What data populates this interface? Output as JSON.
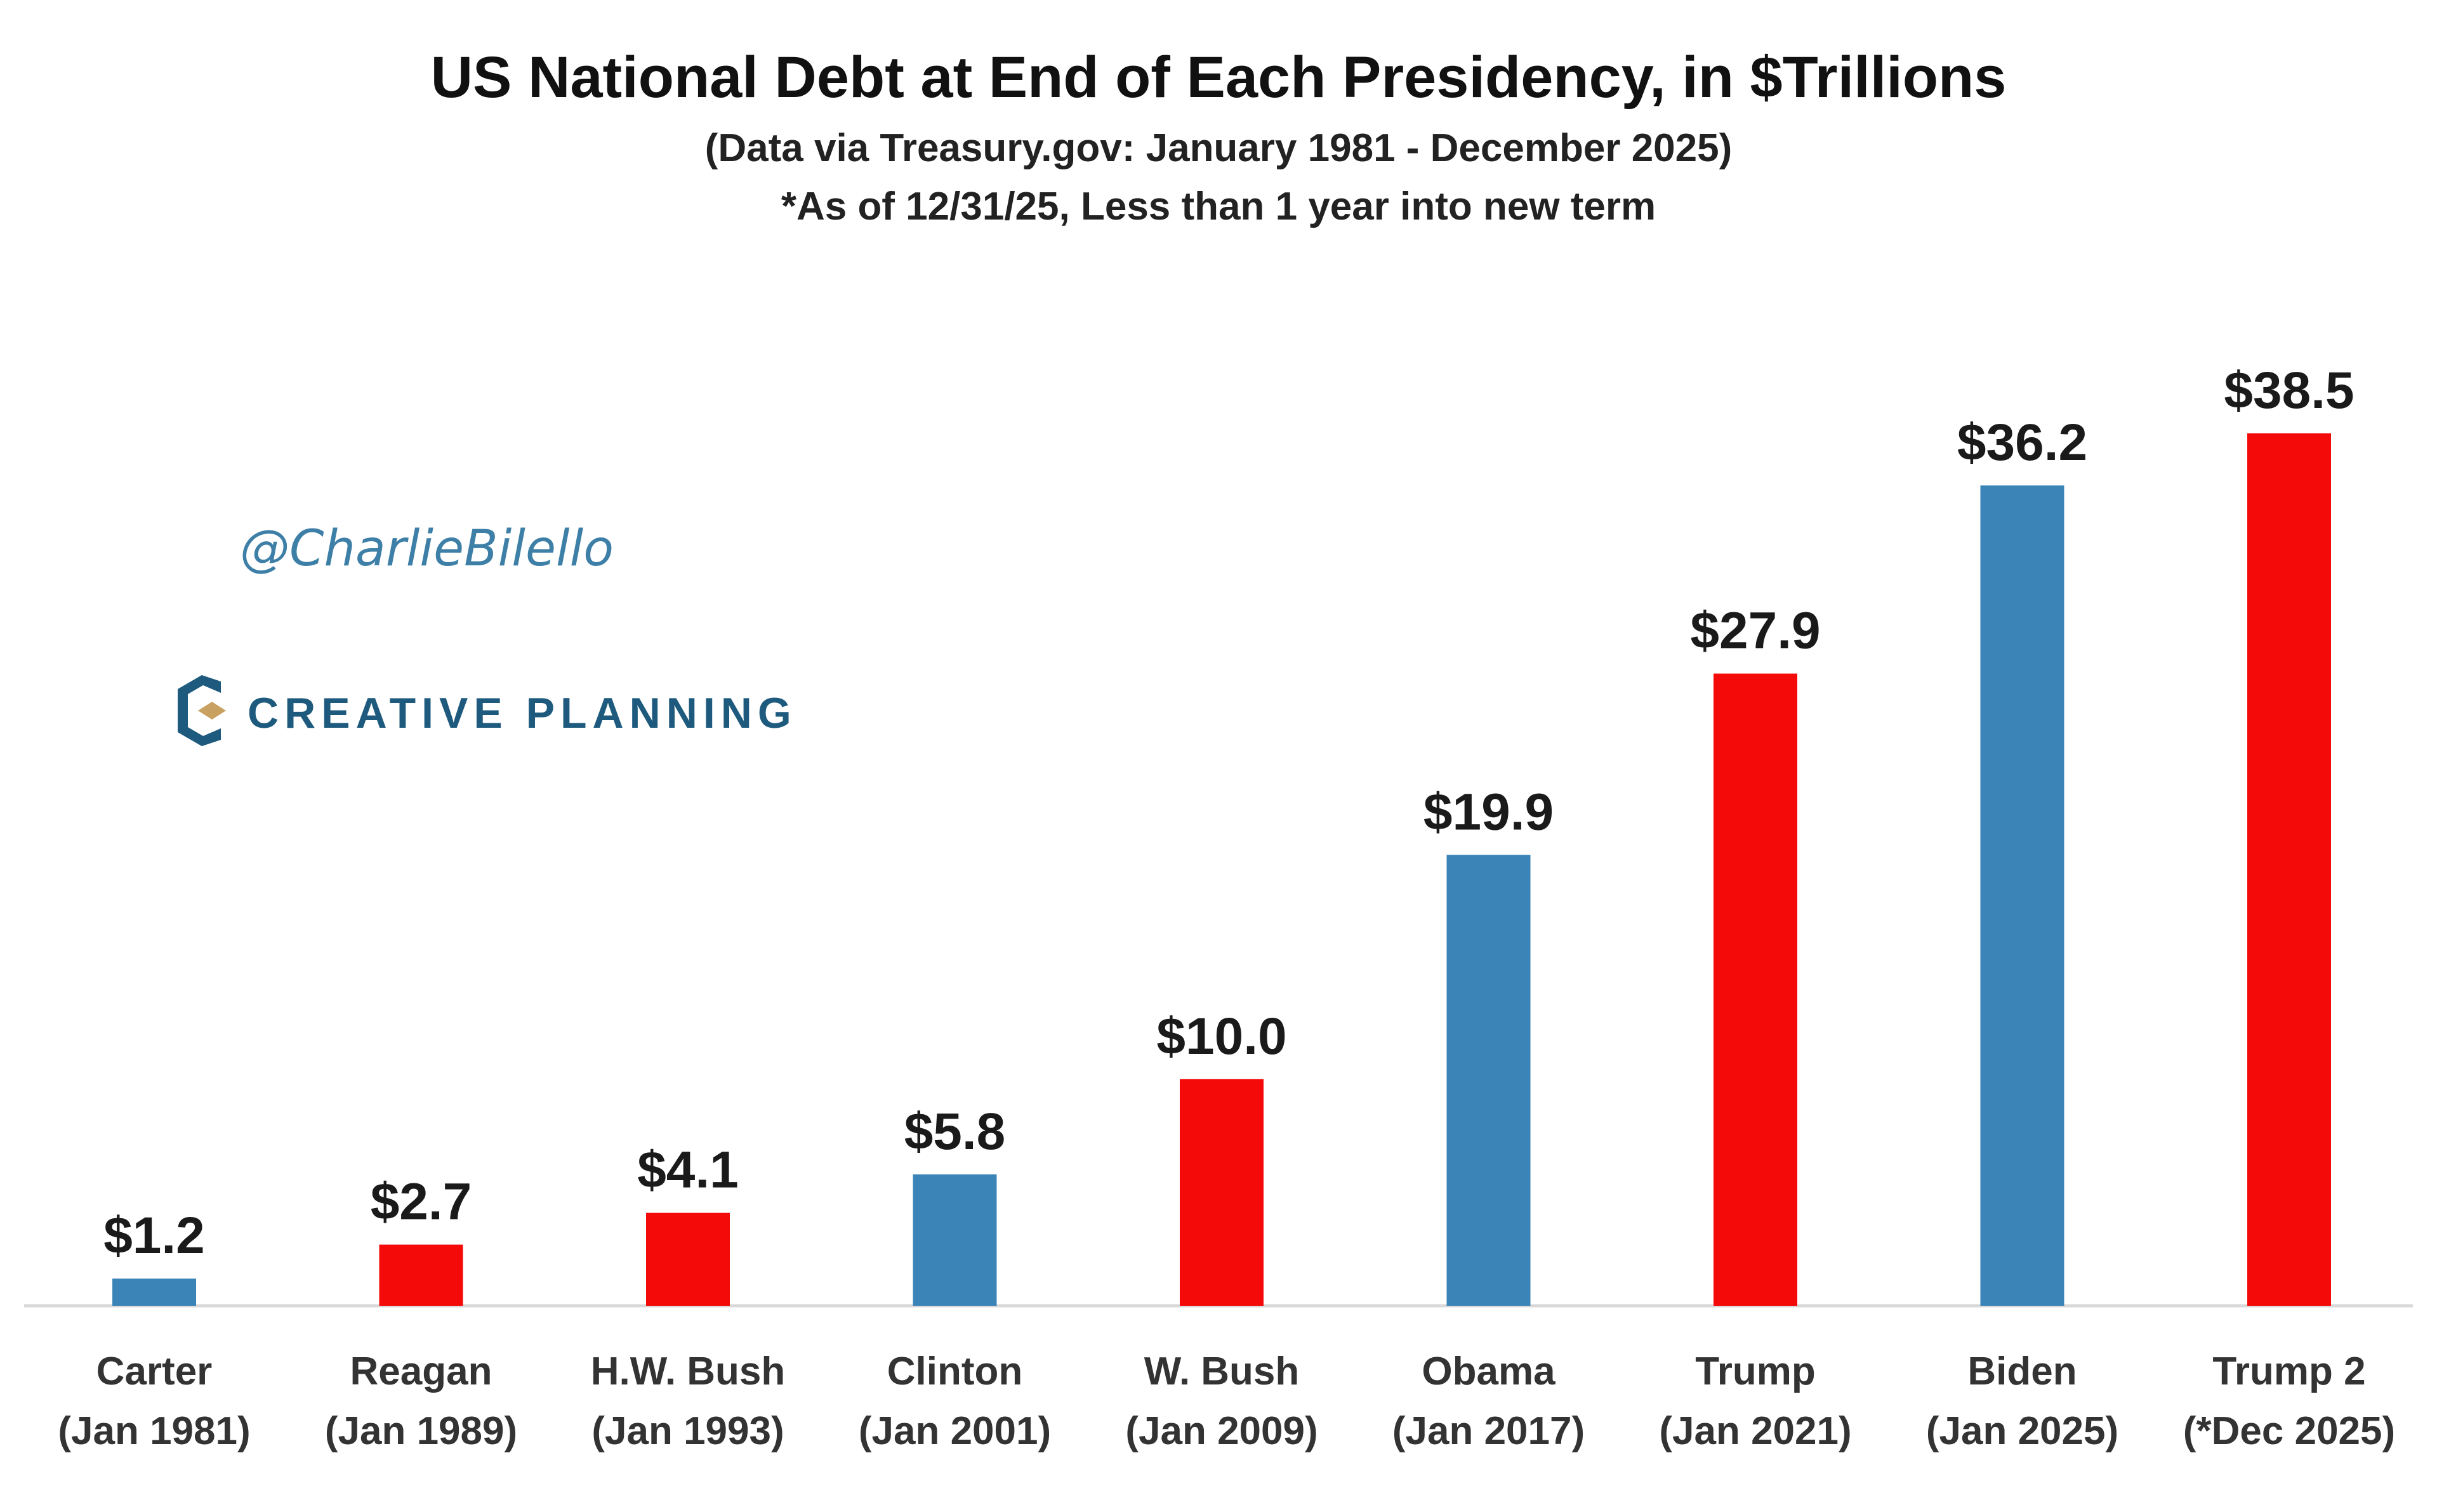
{
  "header": {
    "title": "US National Debt at End of Each Presidency, in $Trillions",
    "subtitle": "(Data via Treasury.gov: January 1981 - December 2025)",
    "note": "*As of 12/31/25, Less than 1 year into new term"
  },
  "watermark": {
    "handle": "@CharlieBilello",
    "brand": "CREATIVE PLANNING",
    "brand_icon": "creative-planning-logo-icon"
  },
  "colors": {
    "blue": "#3b84b8",
    "red": "#f50a0a",
    "axis": "#d9d9d9"
  },
  "chart_data": {
    "type": "bar",
    "title": "US National Debt at End of Each Presidency, in $Trillions",
    "subtitle": "(Data via Treasury.gov: January 1981 - December 2025)",
    "xlabel": "",
    "ylabel": "",
    "ylim": [
      0,
      40
    ],
    "grid": false,
    "legend": "none",
    "categories": [
      [
        "Carter",
        "(Jan 1981)"
      ],
      [
        "Reagan",
        "(Jan 1989)"
      ],
      [
        "H.W. Bush",
        "(Jan 1993)"
      ],
      [
        "Clinton",
        "(Jan 2001)"
      ],
      [
        "W. Bush",
        "(Jan 2009)"
      ],
      [
        "Obama",
        "(Jan 2017)"
      ],
      [
        "Trump",
        "(Jan 2021)"
      ],
      [
        "Biden",
        "(Jan 2025)"
      ],
      [
        "Trump 2",
        "(*Dec 2025)"
      ]
    ],
    "values": [
      1.2,
      2.7,
      4.1,
      5.8,
      10.0,
      19.9,
      27.9,
      36.2,
      38.5
    ],
    "value_labels": [
      "$1.2",
      "$2.7",
      "$4.1",
      "$5.8",
      "$10.0",
      "$19.9",
      "$27.9",
      "$36.2",
      "$38.5"
    ],
    "bar_colors": [
      "blue",
      "red",
      "red",
      "blue",
      "red",
      "blue",
      "red",
      "blue",
      "red"
    ]
  }
}
